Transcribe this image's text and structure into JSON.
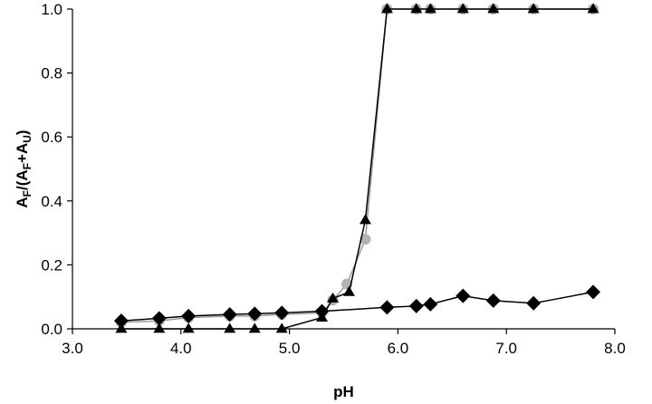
{
  "chart_data": {
    "type": "scatter",
    "title": "",
    "xlabel": "pH",
    "ylabel": {
      "main": "A",
      "sub1": "F",
      "mid": "/(A",
      "sub2": "F",
      "plus": "+A",
      "sub3": "U",
      "close": ")"
    },
    "xlim": [
      3.0,
      8.0
    ],
    "ylim": [
      0.0,
      1.0
    ],
    "x_ticks": [
      "3.0",
      "4.0",
      "5.0",
      "6.0",
      "7.0",
      "8.0"
    ],
    "y_ticks": [
      "0.0",
      "0.2",
      "0.4",
      "0.6",
      "0.8",
      "1.0"
    ],
    "grid": false,
    "legend": "none",
    "series": [
      {
        "marker": "circle",
        "color": "#b3b3b3",
        "line_color": "#9a9a9a",
        "x": [
          3.45,
          3.8,
          4.07,
          4.45,
          4.68,
          4.93,
          5.3,
          5.4,
          5.53,
          5.7,
          5.9,
          6.17,
          6.3,
          6.6,
          6.88,
          7.25,
          7.8
        ],
        "y": [
          0.02,
          0.025,
          0.035,
          0.04,
          0.04,
          0.045,
          0.05,
          0.09,
          0.14,
          0.28,
          1.0,
          1.0,
          1.0,
          1.0,
          1.0,
          1.0,
          1.0
        ]
      },
      {
        "marker": "diamond",
        "color": "#000000",
        "line_color": "#000000",
        "x": [
          3.45,
          3.8,
          4.07,
          4.45,
          4.68,
          4.93,
          5.3,
          5.9,
          6.17,
          6.3,
          6.6,
          6.88,
          7.25,
          7.8
        ],
        "y": [
          0.025,
          0.033,
          0.04,
          0.045,
          0.047,
          0.05,
          0.055,
          0.067,
          0.071,
          0.077,
          0.103,
          0.088,
          0.08,
          0.115
        ]
      },
      {
        "marker": "triangle",
        "color": "#000000",
        "line_color": "#000000",
        "x": [
          3.45,
          3.8,
          4.07,
          4.45,
          4.68,
          4.93,
          5.3,
          5.4,
          5.55,
          5.7,
          5.9,
          6.17,
          6.3,
          6.6,
          6.88,
          7.25,
          7.8
        ],
        "y": [
          0.0,
          0.0,
          0.0,
          0.0,
          0.0,
          0.0,
          0.035,
          0.095,
          0.115,
          0.34,
          1.0,
          1.0,
          1.0,
          1.0,
          1.0,
          1.0,
          1.0
        ]
      }
    ]
  }
}
